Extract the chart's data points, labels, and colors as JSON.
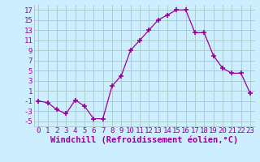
{
  "x": [
    0,
    1,
    2,
    3,
    4,
    5,
    6,
    7,
    8,
    9,
    10,
    11,
    12,
    13,
    14,
    15,
    16,
    17,
    18,
    19,
    20,
    21,
    22,
    23
  ],
  "y": [
    -1,
    -1.3,
    -2.7,
    -3.5,
    -0.8,
    -2,
    -4.5,
    -4.5,
    2,
    4,
    9,
    11,
    13,
    15,
    16,
    17,
    17,
    12.5,
    12.5,
    8,
    5.5,
    4.5,
    4.5,
    0.5
  ],
  "line_color": "#990099",
  "marker": "+",
  "marker_size": 4,
  "bg_color": "#cceeff",
  "grid_color": "#aacccc",
  "xlabel": "Windchill (Refroidissement éolien,°C)",
  "ylim": [
    -6,
    18
  ],
  "xlim": [
    -0.5,
    23.5
  ],
  "yticks": [
    -5,
    -3,
    -1,
    1,
    3,
    5,
    7,
    9,
    11,
    13,
    15,
    17
  ],
  "xtick_labels": [
    "0",
    "1",
    "2",
    "3",
    "4",
    "5",
    "6",
    "7",
    "8",
    "9",
    "10",
    "11",
    "12",
    "13",
    "14",
    "15",
    "16",
    "17",
    "18",
    "19",
    "20",
    "21",
    "22",
    "23"
  ],
  "tick_fontsize": 6.5,
  "xlabel_fontsize": 7.5
}
